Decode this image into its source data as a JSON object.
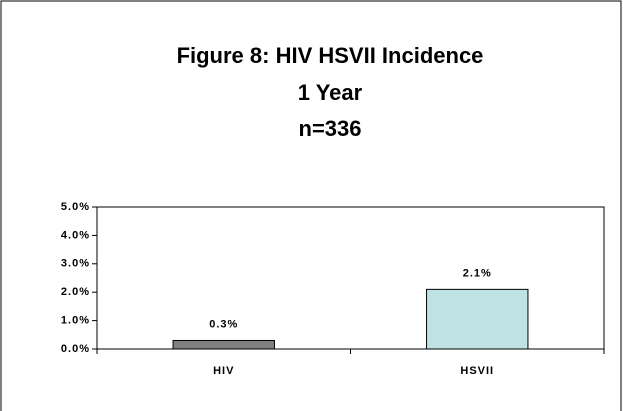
{
  "chart_data": {
    "type": "bar",
    "title": [
      "Figure 8: HIV HSVII Incidence",
      "1 Year",
      "n=336"
    ],
    "categories": [
      "HIV",
      "HSVII"
    ],
    "values": [
      0.3,
      2.1
    ],
    "value_labels": [
      "0.3%",
      "2.1%"
    ],
    "colors": [
      "#808080",
      "#bfe3e4"
    ],
    "ylim": [
      0,
      5
    ],
    "yticks": [
      {
        "value": 0,
        "label": "0.0%"
      },
      {
        "value": 1,
        "label": "1.0%"
      },
      {
        "value": 2,
        "label": "2.0%"
      },
      {
        "value": 3,
        "label": "3.0%"
      },
      {
        "value": 4,
        "label": "4.0%"
      },
      {
        "value": 5,
        "label": "5.0%"
      }
    ],
    "grid": false
  }
}
